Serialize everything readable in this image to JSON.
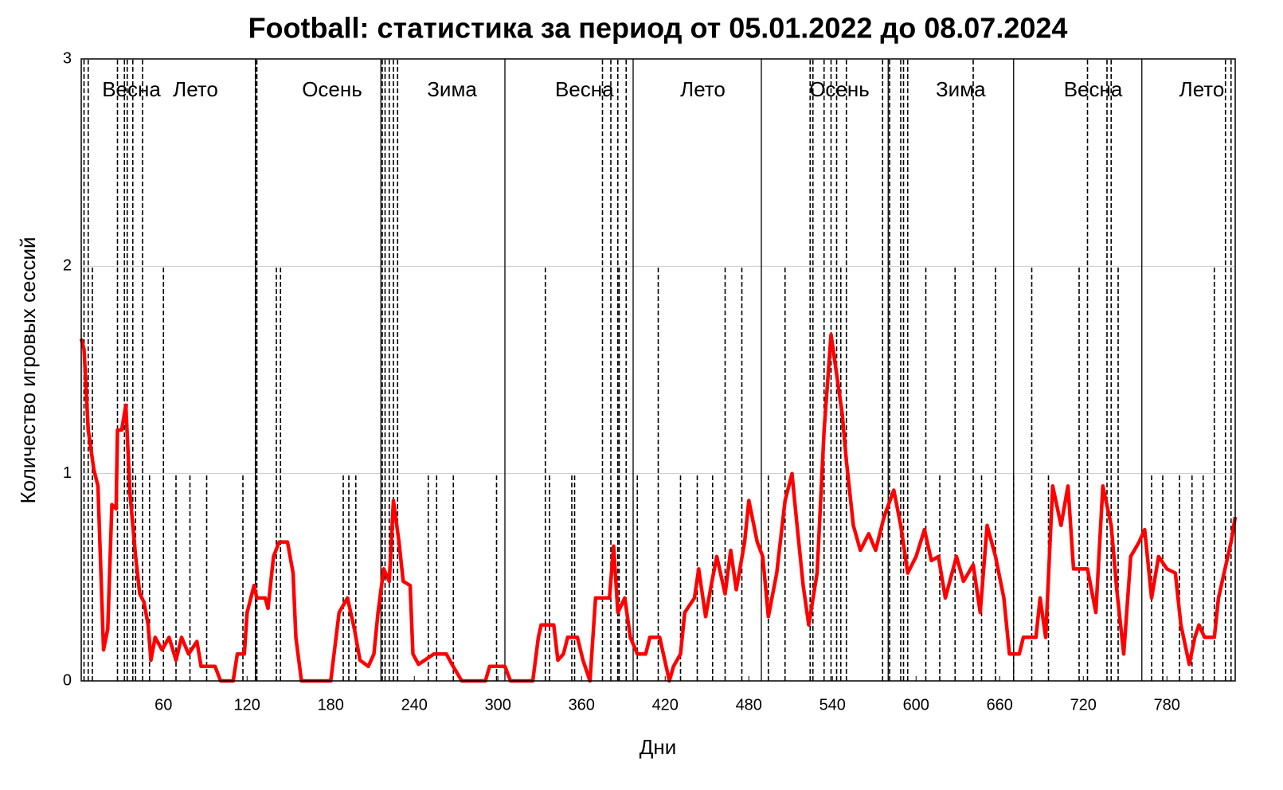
{
  "chart_data": {
    "type": "line",
    "title": "Football: статистика за период от 05.01.2022 до 08.07.2024",
    "x_label": "Дни",
    "y_label": "Количество игровых сессий",
    "xlim": [
      1,
      829
    ],
    "ylim": [
      0,
      3
    ],
    "xticks": [
      60,
      120,
      180,
      240,
      300,
      360,
      420,
      480,
      540,
      600,
      660,
      720,
      780
    ],
    "yticks": [
      0,
      1,
      2,
      3
    ],
    "grid": true,
    "season_boundaries": [
      126,
      216,
      305,
      397,
      489,
      580,
      670,
      762
    ],
    "seasons": [
      {
        "label": "Весна",
        "x": 37
      },
      {
        "label": "Лето",
        "x": 83
      },
      {
        "label": "Осень",
        "x": 181
      },
      {
        "label": "Зима",
        "x": 267
      },
      {
        "label": "Весна",
        "x": 362
      },
      {
        "label": "Лето",
        "x": 447
      },
      {
        "label": "Осень",
        "x": 545
      },
      {
        "label": "Зима",
        "x": 632
      },
      {
        "label": "Весна",
        "x": 727
      },
      {
        "label": "Лето",
        "x": 805
      }
    ],
    "series": [
      {
        "style": "dashed-stems",
        "color": "#000000",
        "x": [
          3,
          6,
          9,
          27,
          32,
          34,
          38,
          40,
          45,
          50,
          60,
          69,
          79,
          91,
          117,
          126,
          127,
          141,
          144,
          189,
          193,
          198,
          217,
          219,
          222,
          225,
          228,
          250,
          256,
          268,
          299,
          334,
          337,
          353,
          355,
          375,
          381,
          386,
          387,
          392,
          400,
          415,
          431,
          443,
          454,
          463,
          475,
          494,
          506,
          524,
          526,
          534,
          539,
          543,
          546,
          550,
          576,
          581,
          589,
          591,
          594,
          607,
          617,
          628,
          641,
          647,
          657,
          670,
          683,
          695,
          717,
          723,
          737,
          740,
          745,
          769,
          777,
          789,
          798,
          806,
          814,
          822,
          826
        ],
        "values": [
          3,
          3,
          2,
          3,
          3,
          3,
          3,
          1,
          3,
          1,
          2,
          1,
          1,
          1,
          1,
          3,
          3,
          2,
          2,
          1,
          1,
          1,
          3,
          3,
          3,
          3,
          3,
          1,
          1,
          1,
          1,
          2,
          1,
          1,
          1,
          3,
          3,
          3,
          2,
          3,
          1,
          2,
          1,
          1,
          1,
          2,
          2,
          1,
          2,
          3,
          3,
          3,
          3,
          3,
          2,
          3,
          3,
          3,
          3,
          3,
          3,
          2,
          1,
          2,
          3,
          1,
          2,
          1,
          2,
          1,
          2,
          3,
          3,
          3,
          2,
          1,
          1,
          1,
          1,
          1,
          2,
          3,
          3
        ]
      },
      {
        "style": "solid",
        "color": "#ff0000",
        "x": [
          1,
          3,
          6,
          10,
          13,
          17,
          20,
          23,
          26,
          27,
          30,
          33,
          36,
          40,
          43,
          46,
          49,
          51,
          54,
          59,
          64,
          69,
          73,
          78,
          84,
          87,
          97,
          101,
          110,
          113,
          118,
          120,
          125,
          127,
          133,
          135,
          139,
          143,
          149,
          153,
          155,
          159,
          180,
          186,
          192,
          197,
          201,
          207,
          211,
          214,
          218,
          222,
          225,
          229,
          232,
          237,
          239,
          243,
          254,
          263,
          267,
          274,
          291,
          294,
          305,
          309,
          325,
          329,
          331,
          340,
          343,
          347,
          350,
          357,
          361,
          366,
          370,
          380,
          383,
          386,
          391,
          395,
          400,
          406,
          409,
          416,
          423,
          426,
          431,
          434,
          441,
          444,
          449,
          453,
          457,
          463,
          467,
          471,
          477,
          480,
          486,
          490,
          494,
          500,
          506,
          511,
          514,
          519,
          523,
          529,
          534,
          539,
          543,
          547,
          550,
          555,
          560,
          566,
          571,
          577,
          584,
          589,
          594,
          600,
          606,
          611,
          616,
          621,
          629,
          634,
          641,
          646,
          651,
          657,
          663,
          667,
          674,
          677,
          686,
          689,
          693,
          698,
          704,
          709,
          713,
          723,
          729,
          734,
          740,
          744,
          749,
          754,
          760,
          764,
          769,
          774,
          780,
          786,
          790,
          796,
          800,
          803,
          807,
          814,
          817,
          821,
          826,
          829
        ],
        "values": [
          1.65,
          1.6,
          1.21,
          1.02,
          0.94,
          0.15,
          0.25,
          0.85,
          0.83,
          1.21,
          1.21,
          1.33,
          0.9,
          0.6,
          0.42,
          0.38,
          0.27,
          0.1,
          0.21,
          0.15,
          0.21,
          0.1,
          0.21,
          0.13,
          0.19,
          0.07,
          0.07,
          0,
          0,
          0.13,
          0.13,
          0.33,
          0.46,
          0.4,
          0.4,
          0.35,
          0.6,
          0.67,
          0.67,
          0.52,
          0.21,
          0,
          0,
          0.33,
          0.4,
          0.25,
          0.1,
          0.07,
          0.13,
          0.33,
          0.54,
          0.48,
          0.87,
          0.67,
          0.48,
          0.46,
          0.13,
          0.08,
          0.13,
          0.13,
          0.08,
          0,
          0,
          0.07,
          0.07,
          0,
          0,
          0.21,
          0.27,
          0.27,
          0.1,
          0.13,
          0.21,
          0.21,
          0.1,
          0,
          0.4,
          0.4,
          0.65,
          0.33,
          0.4,
          0.21,
          0.13,
          0.13,
          0.21,
          0.21,
          0,
          0.07,
          0.13,
          0.33,
          0.4,
          0.54,
          0.31,
          0.46,
          0.6,
          0.42,
          0.63,
          0.44,
          0.67,
          0.87,
          0.67,
          0.6,
          0.31,
          0.52,
          0.87,
          1.0,
          0.79,
          0.46,
          0.27,
          0.52,
          1.21,
          1.67,
          1.48,
          1.29,
          1.06,
          0.75,
          0.63,
          0.71,
          0.63,
          0.79,
          0.92,
          0.75,
          0.52,
          0.6,
          0.73,
          0.58,
          0.6,
          0.4,
          0.6,
          0.48,
          0.56,
          0.33,
          0.75,
          0.6,
          0.4,
          0.13,
          0.13,
          0.21,
          0.21,
          0.4,
          0.21,
          0.94,
          0.75,
          0.94,
          0.54,
          0.54,
          0.33,
          0.94,
          0.75,
          0.44,
          0.13,
          0.6,
          0.67,
          0.73,
          0.4,
          0.6,
          0.54,
          0.52,
          0.27,
          0.08,
          0.21,
          0.27,
          0.21,
          0.21,
          0.4,
          0.52,
          0.67,
          0.79
        ]
      }
    ]
  }
}
